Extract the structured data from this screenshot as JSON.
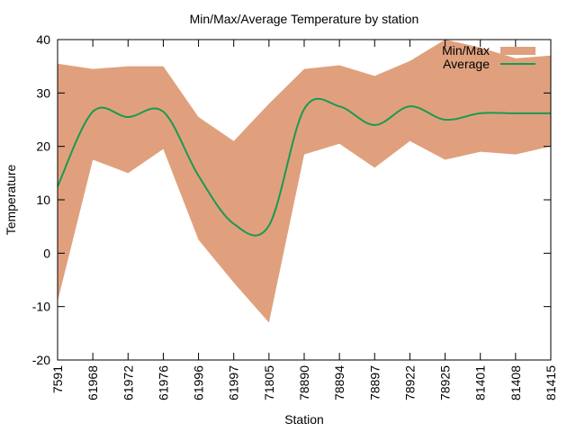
{
  "chart_data": {
    "type": "area",
    "title": "Min/Max/Average Temperature by station",
    "xlabel": "Station",
    "ylabel": "Temperature",
    "ylim": [
      -20,
      40
    ],
    "yticks": [
      -20,
      -10,
      0,
      10,
      20,
      30,
      40
    ],
    "grid": false,
    "legend_position": "top-right",
    "categories": [
      "7591",
      "61968",
      "61972",
      "61976",
      "61996",
      "61997",
      "71805",
      "78890",
      "78894",
      "78897",
      "78922",
      "78925",
      "81401",
      "81408",
      "81415"
    ],
    "series": [
      {
        "name": "Min/Max",
        "kind": "band",
        "color": "#e0a07e",
        "min": [
          -9,
          17.5,
          15,
          19.5,
          2.5,
          -5.5,
          -13,
          18.5,
          20.5,
          16,
          21,
          17.5,
          19,
          18.5,
          20
        ],
        "max": [
          35.5,
          34.5,
          35,
          35,
          25.5,
          21,
          28,
          34.5,
          35.2,
          33.2,
          36,
          40,
          38.5,
          36.5,
          37
        ]
      },
      {
        "name": "Average",
        "kind": "line",
        "color": "#1a9a50",
        "values": [
          12.5,
          26.5,
          25.5,
          26.5,
          14.5,
          5.5,
          5.2,
          27,
          27.5,
          24,
          27.5,
          25,
          26.2,
          26.2,
          26.2
        ]
      }
    ]
  }
}
